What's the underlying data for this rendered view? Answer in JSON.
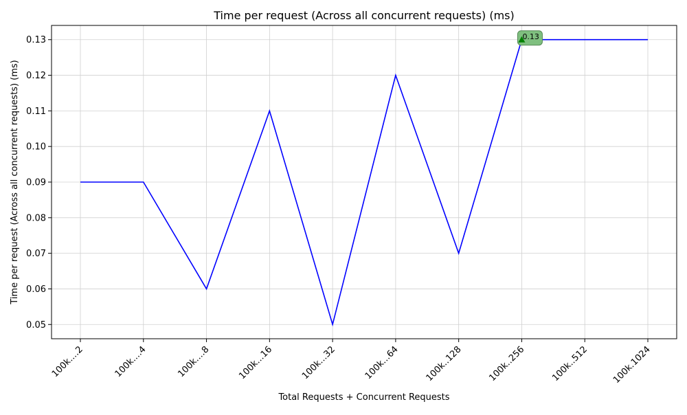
{
  "chart_data": {
    "type": "line",
    "title": "Time per request (Across all concurrent requests) (ms)",
    "xlabel": "Total Requests + Concurrent Requests",
    "ylabel": "Time per request (Across all concurrent requests) (ms)",
    "categories": [
      "100k....2",
      "100k....4",
      "100k....8",
      "100k...16",
      "100k...32",
      "100k...64",
      "100k..128",
      "100k..256",
      "100k..512",
      "100k.1024"
    ],
    "series": [
      {
        "values": [
          0.09,
          0.09,
          0.06,
          0.11,
          0.05,
          0.12,
          0.07,
          0.13,
          0.13,
          0.13
        ],
        "color": "#0000ff"
      }
    ],
    "ylim": [
      0.046,
      0.134
    ],
    "yticks": [
      "0.05",
      "0.06",
      "0.07",
      "0.08",
      "0.09",
      "0.10",
      "0.11",
      "0.12",
      "0.13"
    ],
    "grid": true,
    "annotation": {
      "category_index": 7,
      "text": "0.13",
      "marker_color": "#008000",
      "box_color": "#7fbf7f"
    }
  }
}
